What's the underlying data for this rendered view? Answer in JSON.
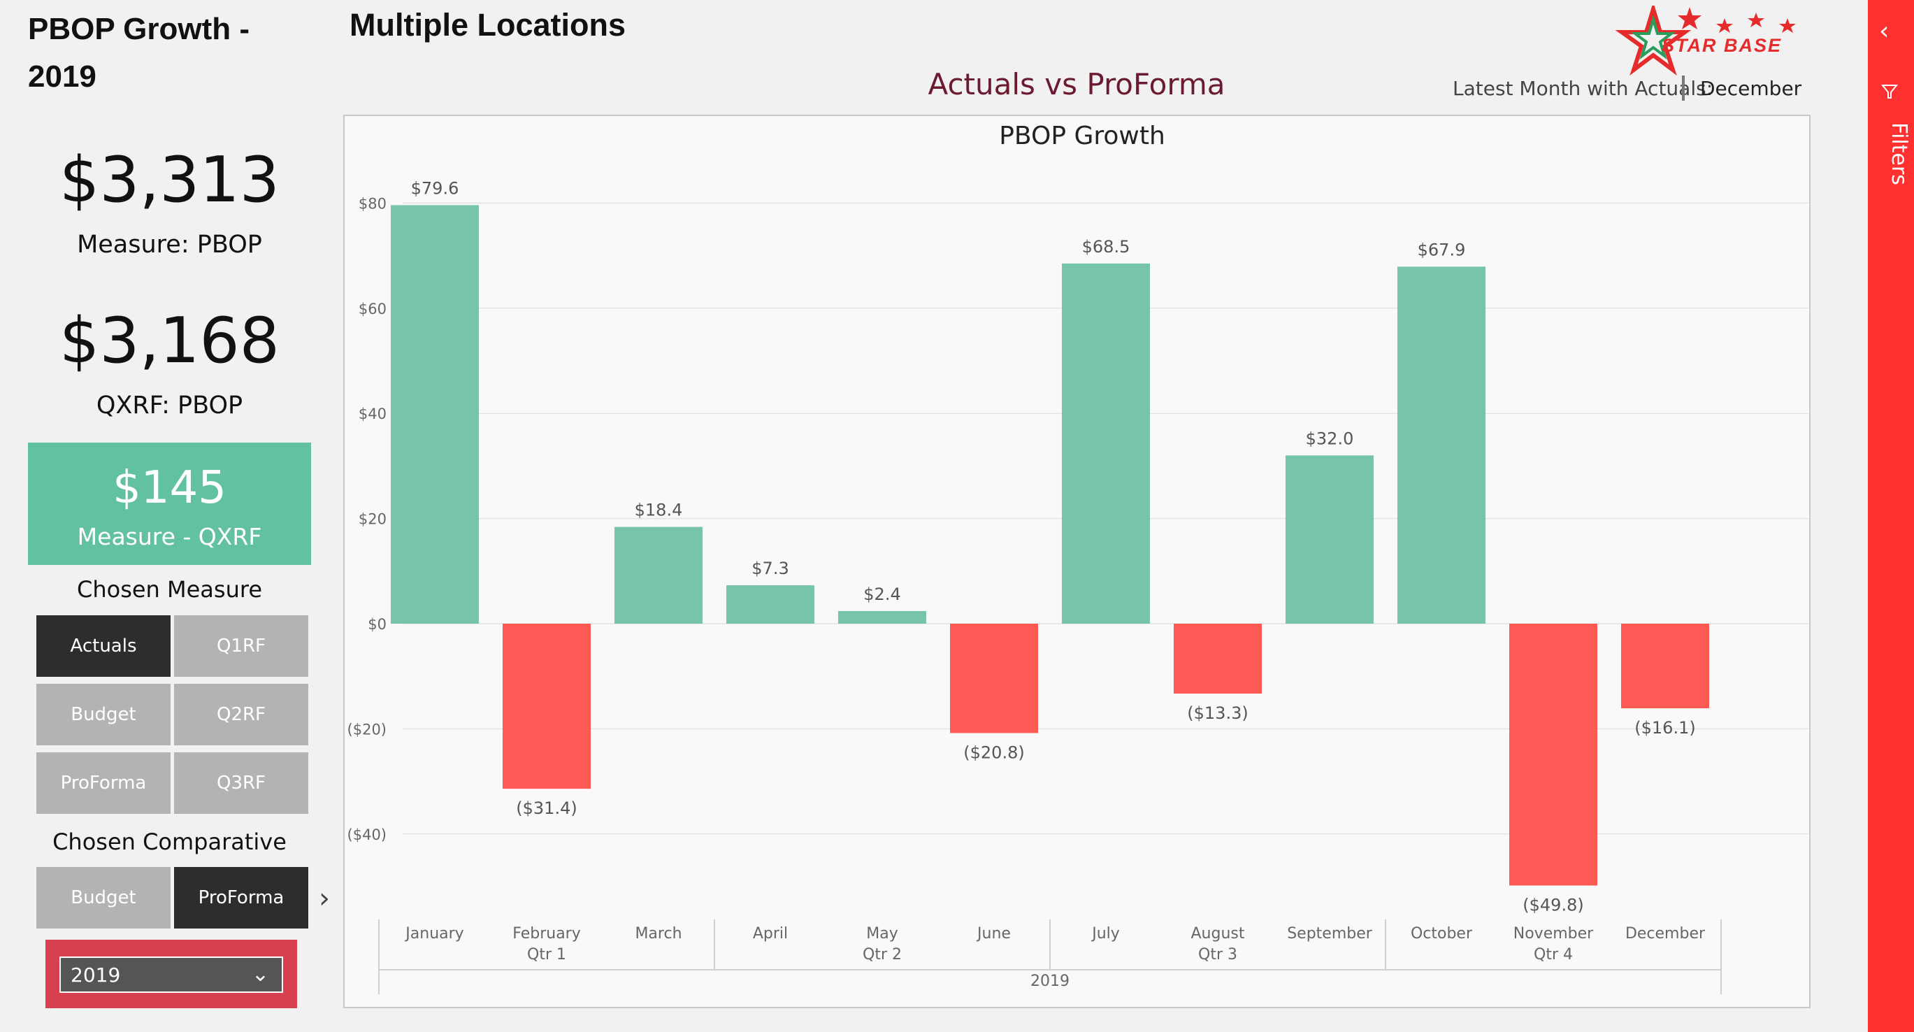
{
  "header": {
    "page_title": "PBOP Growth - 2019",
    "main_title": "Multiple Locations",
    "chart_heading": "Actuals vs ProForma",
    "latest_month_label": "Latest Month with Actuals:",
    "latest_month_value": "December",
    "logo_text": "STAR BASE"
  },
  "kpis": {
    "measure_value": "$3,313",
    "measure_label": "Measure: PBOP",
    "compare_value": "$3,168",
    "compare_label": "QXRF: PBOP",
    "variance_value": "$145",
    "variance_label": "Measure - QXRF"
  },
  "slicers": {
    "measure_title": "Chosen Measure",
    "measure_buttons": [
      "Actuals",
      "Q1RF",
      "Budget",
      "Q2RF",
      "ProForma",
      "Q3RF"
    ],
    "measure_selected": "Actuals",
    "comparative_title": "Chosen Comparative",
    "comparative_buttons": [
      "Budget",
      "ProForma"
    ],
    "comparative_selected": "ProForma",
    "year_value": "2019"
  },
  "filters_pane": {
    "label": "Filters"
  },
  "colors": {
    "positive": "#76c5a8",
    "negative": "#fd5a55",
    "variance_card": "#62c2a0",
    "year_slicer": "#d6404f",
    "filters_pane": "#ff3030",
    "heading": "#6b1a2f"
  },
  "chart_data": {
    "type": "bar",
    "title": "PBOP Growth",
    "categories": [
      "January",
      "February",
      "March",
      "April",
      "May",
      "June",
      "July",
      "August",
      "September",
      "October",
      "November",
      "December"
    ],
    "values": [
      79.6,
      -31.4,
      18.4,
      7.3,
      2.4,
      -20.8,
      68.5,
      -13.3,
      32.0,
      67.9,
      -49.8,
      -16.1
    ],
    "data_labels": [
      "$79.6",
      "($31.4)",
      "$18.4",
      "$7.3",
      "$2.4",
      "($20.8)",
      "$68.5",
      "($13.3)",
      "$32.0",
      "$67.9",
      "($49.8)",
      "($16.1)"
    ],
    "quarters": [
      "Qtr 1",
      "Qtr 2",
      "Qtr 3",
      "Qtr 4"
    ],
    "year": "2019",
    "y_ticks": [
      80,
      60,
      40,
      20,
      0,
      -20,
      -40
    ],
    "y_tick_labels": [
      "$80",
      "$60",
      "$40",
      "$20",
      "$0",
      "($20)",
      "($40)"
    ],
    "ylim": [
      -55,
      85
    ],
    "grid": true,
    "xlabel": "",
    "ylabel": ""
  }
}
